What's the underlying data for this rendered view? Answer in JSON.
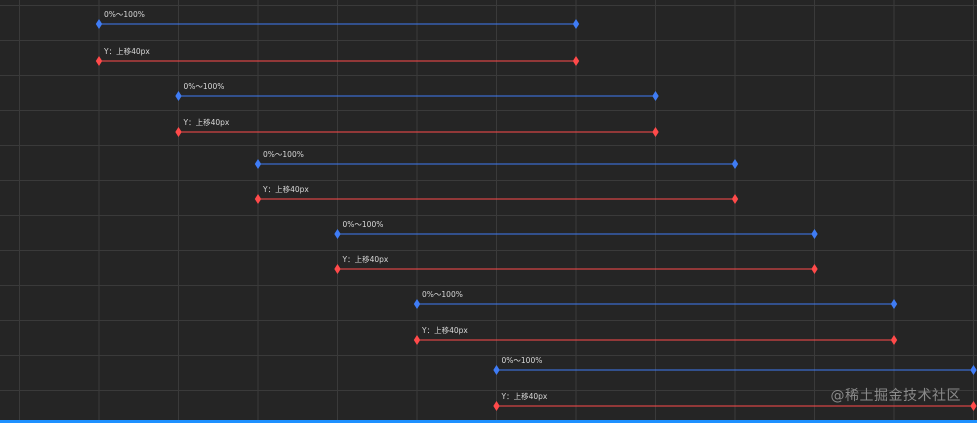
{
  "colors": {
    "background": "#252525",
    "grid": "#3a3a3a",
    "blue": "#3f7cf5",
    "red": "#ff4a4a",
    "label": "#d8d8d8"
  },
  "timeline": {
    "rows": [
      {
        "opacity_label": "0%～100%",
        "y_label": "Y：上移40px",
        "start": 1,
        "end": 7
      },
      {
        "opacity_label": "0%～100%",
        "y_label": "Y：上移40px",
        "start": 2,
        "end": 8
      },
      {
        "opacity_label": "0%～100%",
        "y_label": "Y：上移40px",
        "start": 3,
        "end": 9
      },
      {
        "opacity_label": "0%～100%",
        "y_label": "Y：上移40px",
        "start": 4,
        "end": 10
      },
      {
        "opacity_label": "0%～100%",
        "y_label": "Y：上移40px",
        "start": 5,
        "end": 11
      },
      {
        "opacity_label": "0%～100%",
        "y_label": "Y：上移40px",
        "start": 6,
        "end": 12
      }
    ]
  },
  "watermark": "@稀土掘金技术社区"
}
